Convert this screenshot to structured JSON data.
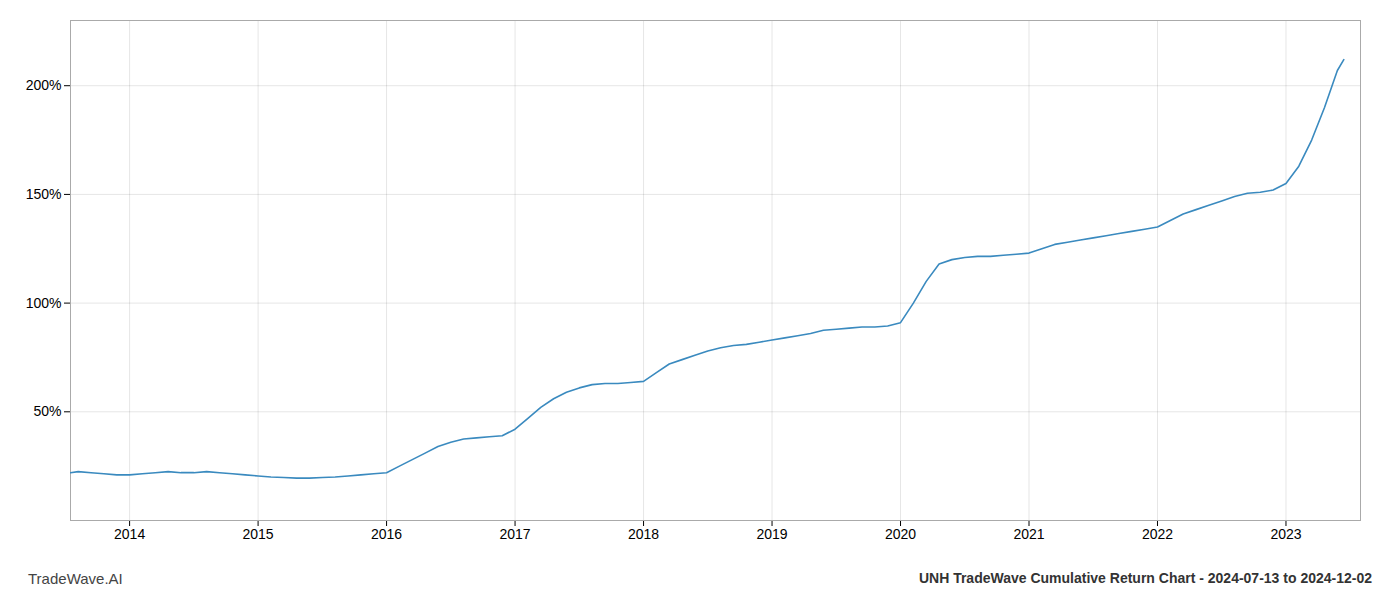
{
  "chart_data": {
    "type": "line",
    "title": "UNH TradeWave Cumulative Return Chart - 2024-07-13 to 2024-12-02",
    "annotations": [
      "TradeWave.AI"
    ],
    "color": "#3a8abf",
    "x": [
      2013.54,
      2013.6,
      2013.7,
      2013.8,
      2013.9,
      2014.0,
      2014.1,
      2014.2,
      2014.3,
      2014.4,
      2014.5,
      2014.6,
      2014.7,
      2014.8,
      2014.9,
      2015.0,
      2015.1,
      2015.2,
      2015.3,
      2015.4,
      2015.5,
      2015.6,
      2015.7,
      2015.8,
      2015.9,
      2016.0,
      2016.1,
      2016.2,
      2016.3,
      2016.4,
      2016.5,
      2016.6,
      2016.7,
      2016.8,
      2016.9,
      2017.0,
      2017.1,
      2017.2,
      2017.3,
      2017.4,
      2017.5,
      2017.6,
      2017.7,
      2017.8,
      2017.9,
      2018.0,
      2018.1,
      2018.2,
      2018.3,
      2018.4,
      2018.5,
      2018.6,
      2018.7,
      2018.8,
      2018.9,
      2019.0,
      2019.1,
      2019.2,
      2019.3,
      2019.4,
      2019.5,
      2019.6,
      2019.7,
      2019.8,
      2019.9,
      2020.0,
      2020.1,
      2020.2,
      2020.3,
      2020.4,
      2020.5,
      2020.6,
      2020.7,
      2020.8,
      2020.9,
      2021.0,
      2021.1,
      2021.2,
      2021.3,
      2021.4,
      2021.5,
      2021.6,
      2021.7,
      2021.8,
      2021.9,
      2022.0,
      2022.1,
      2022.2,
      2022.3,
      2022.4,
      2022.5,
      2022.6,
      2022.7,
      2022.8,
      2022.9,
      2023.0,
      2023.1,
      2023.2,
      2023.3,
      2023.4,
      2023.45
    ],
    "values": [
      22.0,
      22.5,
      22.0,
      21.5,
      21.0,
      21.0,
      21.5,
      22.0,
      22.5,
      22.0,
      22.0,
      22.5,
      22.0,
      21.5,
      21.0,
      20.5,
      20.0,
      19.8,
      19.5,
      19.5,
      19.8,
      20.0,
      20.5,
      21.0,
      21.5,
      22.0,
      25.0,
      28.0,
      31.0,
      34.0,
      36.0,
      37.5,
      38.0,
      38.5,
      39.0,
      42.0,
      47.0,
      52.0,
      56.0,
      59.0,
      61.0,
      62.5,
      63.0,
      63.0,
      63.5,
      64.0,
      68.0,
      72.0,
      74.0,
      76.0,
      78.0,
      79.5,
      80.5,
      81.0,
      82.0,
      83.0,
      84.0,
      85.0,
      86.0,
      87.5,
      88.0,
      88.5,
      89.0,
      89.0,
      89.5,
      91.0,
      100.0,
      110.0,
      118.0,
      120.0,
      121.0,
      121.5,
      121.5,
      122.0,
      122.5,
      123.0,
      125.0,
      127.0,
      128.0,
      129.0,
      130.0,
      131.0,
      132.0,
      133.0,
      134.0,
      135.0,
      138.0,
      141.0,
      143.0,
      145.0,
      147.0,
      149.0,
      150.5,
      151.0,
      152.0,
      155.0,
      163.0,
      175.0,
      190.0,
      207.0,
      212.0
    ],
    "xlim": [
      2013.54,
      2023.58
    ],
    "xticks": [
      2014,
      2015,
      2016,
      2017,
      2018,
      2019,
      2020,
      2021,
      2022,
      2023
    ],
    "ylim": [
      0,
      230
    ],
    "yticks": [
      {
        "value": 50,
        "label": "50%"
      },
      {
        "value": 100,
        "label": "100%"
      },
      {
        "value": 150,
        "label": "150%"
      },
      {
        "value": 200,
        "label": "200%"
      }
    ],
    "grid": true
  }
}
